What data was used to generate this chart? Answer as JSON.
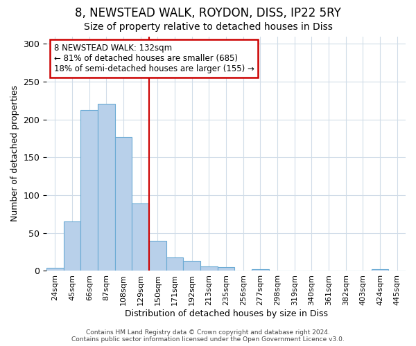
{
  "title": "8, NEWSTEAD WALK, ROYDON, DISS, IP22 5RY",
  "subtitle": "Size of property relative to detached houses in Diss",
  "xlabel": "Distribution of detached houses by size in Diss",
  "ylabel": "Number of detached properties",
  "categories": [
    "24sqm",
    "45sqm",
    "66sqm",
    "87sqm",
    "108sqm",
    "129sqm",
    "150sqm",
    "171sqm",
    "192sqm",
    "213sqm",
    "235sqm",
    "256sqm",
    "277sqm",
    "298sqm",
    "319sqm",
    "340sqm",
    "361sqm",
    "382sqm",
    "403sqm",
    "424sqm",
    "445sqm"
  ],
  "values": [
    4,
    65,
    213,
    221,
    177,
    89,
    40,
    18,
    13,
    6,
    5,
    0,
    2,
    0,
    0,
    0,
    0,
    0,
    0,
    2,
    0
  ],
  "bar_color": "#b8d0ea",
  "bar_edge_color": "#6aaad4",
  "vline_x": 5.5,
  "vline_color": "#cc0000",
  "annotation_text": "8 NEWSTEAD WALK: 132sqm\n← 81% of detached houses are smaller (685)\n18% of semi-detached houses are larger (155) →",
  "annotation_box_color": "#cc0000",
  "ylim": [
    0,
    310
  ],
  "yticks": [
    0,
    50,
    100,
    150,
    200,
    250,
    300
  ],
  "grid_color": "#d0dce8",
  "footer_text": "Contains HM Land Registry data © Crown copyright and database right 2024.\nContains public sector information licensed under the Open Government Licence v3.0.",
  "title_fontsize": 12,
  "subtitle_fontsize": 10,
  "annotation_fontsize": 8.5,
  "xlabel_fontsize": 9,
  "ylabel_fontsize": 9
}
